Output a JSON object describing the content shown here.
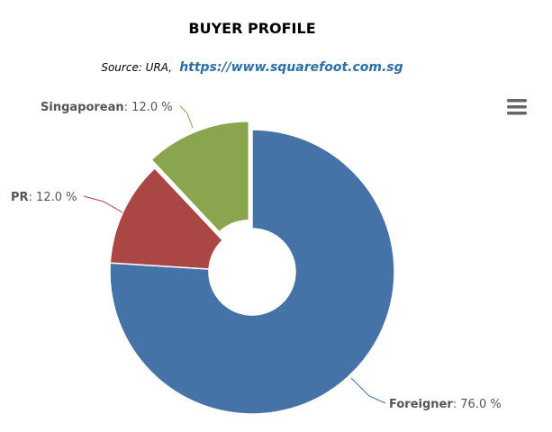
{
  "chart_data": {
    "type": "pie",
    "title": "BUYER PROFILE",
    "subtitle": "Source: URA,",
    "subtitle_link": "https://www.squarefoot.com.sg",
    "categories": [
      "Foreigner",
      "PR",
      "Singaporean"
    ],
    "values": [
      76.0,
      12.0,
      12.0
    ],
    "value_labels": [
      ": 76.0 %",
      ": 12.0 %",
      ": 12.0 %"
    ],
    "colors": [
      "#4572a7",
      "#aa4643",
      "#89a54e"
    ],
    "sliced": [
      false,
      false,
      true
    ]
  }
}
